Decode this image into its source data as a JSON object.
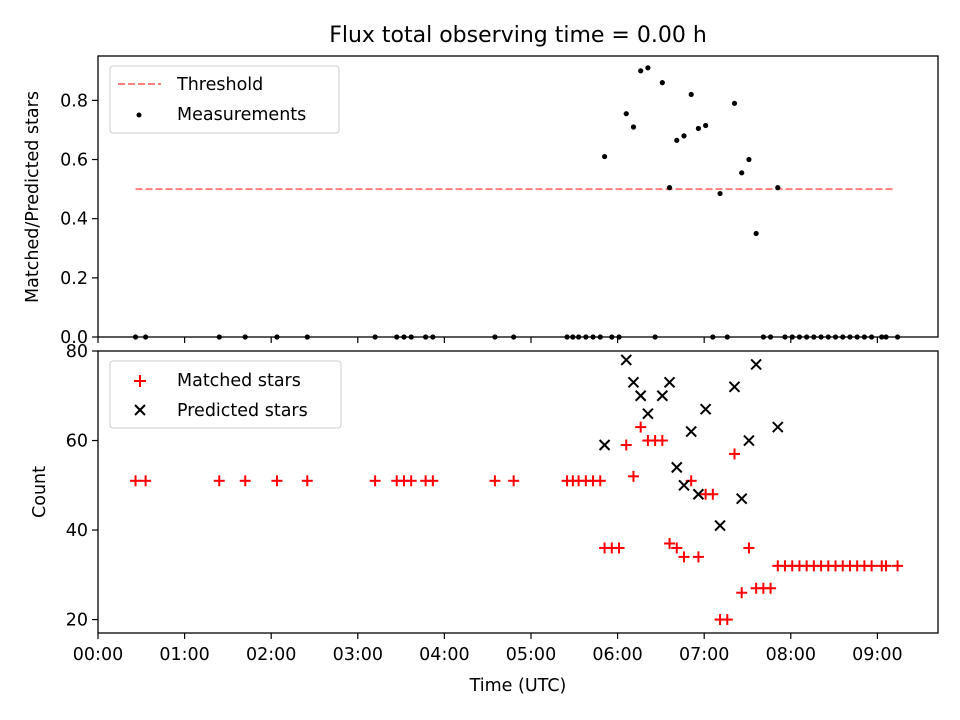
{
  "chart_data": [
    {
      "type": "scatter",
      "title": "Flux total observing time = 0.00 h",
      "xlabel": "",
      "ylabel": "Matched/Predicted stars",
      "ylim": [
        0,
        0.95
      ],
      "yticks": [
        "0.0",
        "0.2",
        "0.4",
        "0.6",
        "0.8"
      ],
      "grid": false,
      "legend_position": "upper-left",
      "threshold": {
        "name": "Threshold",
        "value": 0.5,
        "x_start": "00:26",
        "x_end": "09:12",
        "color": "#ff7f7f",
        "style": "dashed"
      },
      "series": [
        {
          "name": "Measurements",
          "color": "#000000",
          "marker": "dot",
          "points": [
            [
              "00:26",
              0
            ],
            [
              "00:33",
              0
            ],
            [
              "01:24",
              0
            ],
            [
              "01:42",
              0
            ],
            [
              "02:04",
              0
            ],
            [
              "02:25",
              0
            ],
            [
              "03:12",
              0
            ],
            [
              "03:27",
              0
            ],
            [
              "03:32",
              0
            ],
            [
              "03:37",
              0
            ],
            [
              "03:47",
              0
            ],
            [
              "03:52",
              0
            ],
            [
              "04:35",
              0
            ],
            [
              "04:48",
              0
            ],
            [
              "05:25",
              0
            ],
            [
              "05:29",
              0
            ],
            [
              "05:33",
              0
            ],
            [
              "05:38",
              0
            ],
            [
              "05:43",
              0
            ],
            [
              "05:48",
              0
            ],
            [
              "05:51",
              0.61
            ],
            [
              "05:56",
              0
            ],
            [
              "06:01",
              0
            ],
            [
              "06:06",
              0.755
            ],
            [
              "06:11",
              0.71
            ],
            [
              "06:16",
              0.9
            ],
            [
              "06:21",
              0.91
            ],
            [
              "06:26",
              0
            ],
            [
              "06:31",
              0.86
            ],
            [
              "06:36",
              0.505
            ],
            [
              "06:41",
              0.665
            ],
            [
              "06:46",
              0.68
            ],
            [
              "06:51",
              0.82
            ],
            [
              "06:56",
              0.705
            ],
            [
              "07:01",
              0.715
            ],
            [
              "07:06",
              0
            ],
            [
              "07:11",
              0.485
            ],
            [
              "07:16",
              0
            ],
            [
              "07:21",
              0.79
            ],
            [
              "07:26",
              0.555
            ],
            [
              "07:31",
              0.6
            ],
            [
              "07:36",
              0.35
            ],
            [
              "07:41",
              0
            ],
            [
              "07:46",
              0
            ],
            [
              "07:51",
              0.505
            ],
            [
              "07:56",
              0
            ],
            [
              "08:01",
              0
            ],
            [
              "08:06",
              0
            ],
            [
              "08:11",
              0
            ],
            [
              "08:16",
              0
            ],
            [
              "08:21",
              0
            ],
            [
              "08:26",
              0
            ],
            [
              "08:31",
              0
            ],
            [
              "08:36",
              0
            ],
            [
              "08:41",
              0
            ],
            [
              "08:46",
              0
            ],
            [
              "08:51",
              0
            ],
            [
              "08:56",
              0
            ],
            [
              "09:03",
              0
            ],
            [
              "09:06",
              0
            ],
            [
              "09:14",
              0
            ]
          ]
        }
      ]
    },
    {
      "type": "scatter",
      "title": "",
      "xlabel": "Time (UTC)",
      "ylabel": "Count",
      "xlim": [
        "00:00",
        "09:42"
      ],
      "ylim": [
        17,
        80
      ],
      "xticks": [
        "00:00",
        "01:00",
        "02:00",
        "03:00",
        "04:00",
        "05:00",
        "06:00",
        "07:00",
        "08:00",
        "09:00"
      ],
      "yticks": [
        "20",
        "40",
        "60",
        "80"
      ],
      "grid": false,
      "legend_position": "upper-left",
      "series": [
        {
          "name": "Matched stars",
          "color": "#ff0000",
          "marker": "plus",
          "points": [
            [
              "00:26",
              51
            ],
            [
              "00:33",
              51
            ],
            [
              "01:24",
              51
            ],
            [
              "01:42",
              51
            ],
            [
              "02:04",
              51
            ],
            [
              "02:25",
              51
            ],
            [
              "03:12",
              51
            ],
            [
              "03:27",
              51
            ],
            [
              "03:32",
              51
            ],
            [
              "03:37",
              51
            ],
            [
              "03:47",
              51
            ],
            [
              "03:52",
              51
            ],
            [
              "04:35",
              51
            ],
            [
              "04:48",
              51
            ],
            [
              "05:25",
              51
            ],
            [
              "05:29",
              51
            ],
            [
              "05:33",
              51
            ],
            [
              "05:38",
              51
            ],
            [
              "05:43",
              51
            ],
            [
              "05:48",
              51
            ],
            [
              "05:51",
              36
            ],
            [
              "05:56",
              36
            ],
            [
              "06:01",
              36
            ],
            [
              "06:06",
              59
            ],
            [
              "06:11",
              52
            ],
            [
              "06:16",
              63
            ],
            [
              "06:21",
              60
            ],
            [
              "06:26",
              60
            ],
            [
              "06:31",
              60
            ],
            [
              "06:36",
              37
            ],
            [
              "06:41",
              36
            ],
            [
              "06:46",
              34
            ],
            [
              "06:51",
              51
            ],
            [
              "06:56",
              34
            ],
            [
              "07:01",
              48
            ],
            [
              "07:06",
              48
            ],
            [
              "07:11",
              20
            ],
            [
              "07:16",
              20
            ],
            [
              "07:21",
              57
            ],
            [
              "07:26",
              26
            ],
            [
              "07:31",
              36
            ],
            [
              "07:36",
              27
            ],
            [
              "07:41",
              27
            ],
            [
              "07:46",
              27
            ],
            [
              "07:51",
              32
            ],
            [
              "07:56",
              32
            ],
            [
              "08:01",
              32
            ],
            [
              "08:06",
              32
            ],
            [
              "08:11",
              32
            ],
            [
              "08:16",
              32
            ],
            [
              "08:21",
              32
            ],
            [
              "08:26",
              32
            ],
            [
              "08:31",
              32
            ],
            [
              "08:36",
              32
            ],
            [
              "08:41",
              32
            ],
            [
              "08:46",
              32
            ],
            [
              "08:51",
              32
            ],
            [
              "08:56",
              32
            ],
            [
              "09:03",
              32
            ],
            [
              "09:06",
              32
            ],
            [
              "09:14",
              32
            ]
          ]
        },
        {
          "name": "Predicted stars",
          "color": "#000000",
          "marker": "x",
          "points": [
            [
              "05:51",
              59
            ],
            [
              "06:06",
              78
            ],
            [
              "06:11",
              73
            ],
            [
              "06:16",
              70
            ],
            [
              "06:21",
              66
            ],
            [
              "06:31",
              70
            ],
            [
              "06:36",
              73
            ],
            [
              "06:41",
              54
            ],
            [
              "06:46",
              50
            ],
            [
              "06:51",
              62
            ],
            [
              "06:56",
              48
            ],
            [
              "07:01",
              67
            ],
            [
              "07:11",
              41
            ],
            [
              "07:21",
              72
            ],
            [
              "07:26",
              47
            ],
            [
              "07:31",
              60
            ],
            [
              "07:36",
              77
            ],
            [
              "07:51",
              63
            ]
          ]
        }
      ]
    }
  ]
}
